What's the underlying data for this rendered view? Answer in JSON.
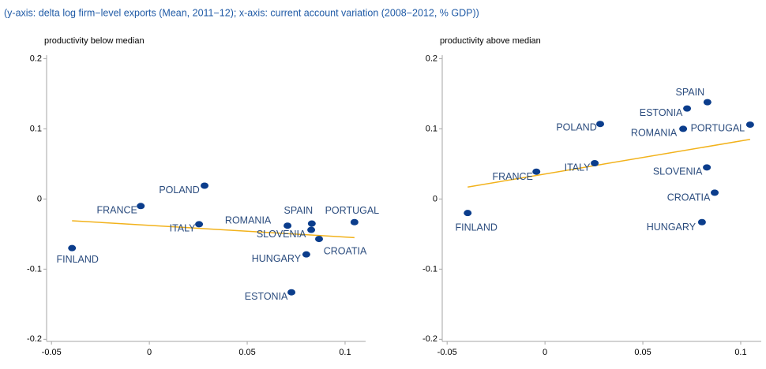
{
  "title": "(y-axis: delta log firm−level exports (Mean, 2011−12); x-axis: current account variation (2008−2012, % GDP))",
  "chart_data": [
    {
      "type": "scatter",
      "subtitle": "productivity below median",
      "xlim": [
        -0.0525,
        0.1105
      ],
      "ylim": [
        -0.203,
        0.205
      ],
      "xticks": [
        -0.05,
        0,
        0.05,
        0.1
      ],
      "yticks": [
        0.2,
        0.1,
        0,
        -0.1,
        -0.2
      ],
      "labels": [
        "FINLAND",
        "FRANCE",
        "POLAND",
        "ITALY",
        "ROMANIA",
        "SPAIN",
        "SLOVENIA",
        "PORTUGAL",
        "CROATIA",
        "HUNGARY",
        "ESTONIA"
      ],
      "x": [
        -0.0395,
        -0.0044,
        0.0282,
        0.0254,
        0.0706,
        0.083,
        0.0827,
        0.1048,
        0.0867,
        0.0802,
        0.0726
      ],
      "values": [
        -0.07,
        -0.01,
        0.019,
        -0.036,
        -0.038,
        -0.035,
        -0.044,
        -0.033,
        -0.057,
        -0.079,
        -0.133
      ],
      "color": "#0b3d8c",
      "fit": {
        "x": [
          -0.0395,
          0.1048
        ],
        "values": [
          -0.031,
          -0.055
        ],
        "color": "#f2b21b"
      }
    },
    {
      "type": "scatter",
      "subtitle": "productivity above median",
      "xlim": [
        -0.0525,
        0.1105
      ],
      "ylim": [
        -0.203,
        0.205
      ],
      "xticks": [
        -0.05,
        0,
        0.05,
        0.1
      ],
      "yticks": [
        0.2,
        0.1,
        0,
        -0.1,
        -0.2
      ],
      "labels": [
        "FINLAND",
        "FRANCE",
        "POLAND",
        "ITALY",
        "ROMANIA",
        "ESTONIA",
        "SPAIN",
        "PORTUGAL",
        "SLOVENIA",
        "CROATIA",
        "HUNGARY"
      ],
      "x": [
        -0.0395,
        -0.0044,
        0.0282,
        0.0254,
        0.0706,
        0.0726,
        0.083,
        0.1048,
        0.0827,
        0.0867,
        0.0802
      ],
      "values": [
        -0.02,
        0.039,
        0.107,
        0.051,
        0.1,
        0.129,
        0.138,
        0.106,
        0.045,
        0.009,
        -0.033
      ],
      "color": "#0b3d8c",
      "fit": {
        "x": [
          -0.0395,
          0.1048
        ],
        "values": [
          0.017,
          0.085
        ],
        "color": "#f2b21b"
      }
    }
  ]
}
